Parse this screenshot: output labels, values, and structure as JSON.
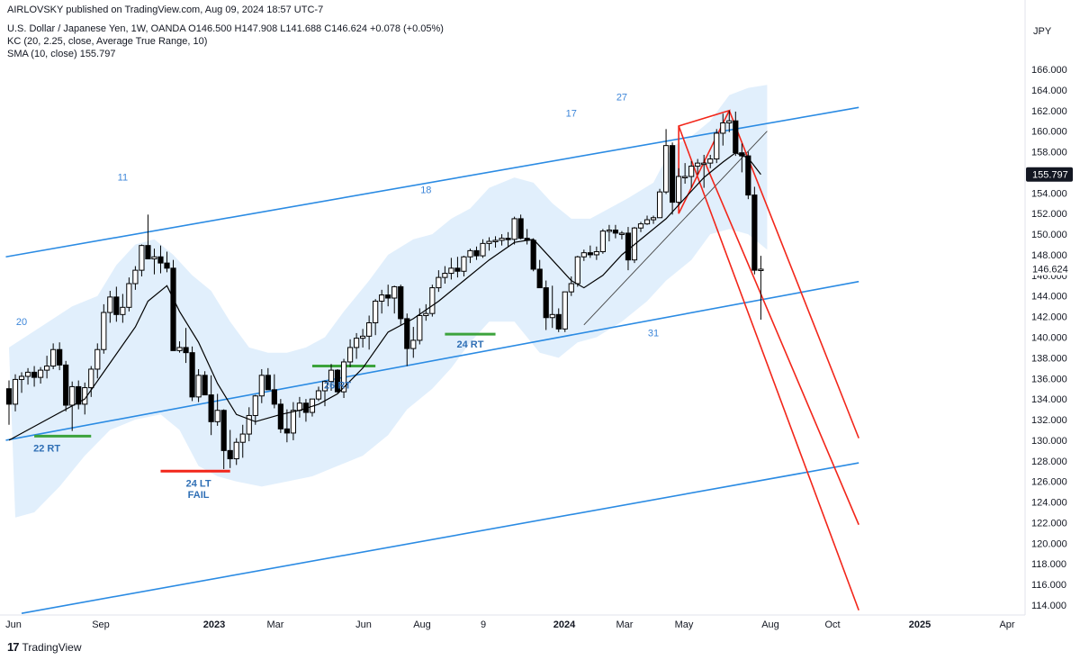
{
  "header": {
    "published": "AIRLOVSKY published on TradingView.com, Aug 09, 2024 18:57 UTC-7",
    "symbol_line": "U.S. Dollar / Japanese Yen, 1W, OANDA  O146.500  H147.908  L141.688  C146.624  +0.078 (+0.05%)",
    "kc_line": "KC (20, 2.25, close, Average True Range, 10)",
    "sma_line": "SMA (10, close)  155.797"
  },
  "footer": {
    "logo": "17",
    "brand": "TradingView"
  },
  "chart_data": {
    "type": "candlestick",
    "currency_label": "JPY",
    "y_axis_ticks": [
      "166.000",
      "164.000",
      "162.000",
      "160.000",
      "158.000",
      "156.000",
      "154.000",
      "152.000",
      "150.000",
      "148.000",
      "146.000",
      "144.000",
      "142.000",
      "140.000",
      "138.000",
      "136.000",
      "134.000",
      "132.000",
      "130.000",
      "128.000",
      "126.000",
      "124.000",
      "122.000",
      "120.000",
      "118.000",
      "116.000",
      "114.000"
    ],
    "ylim": [
      113,
      167
    ],
    "x_axis_labels": [
      {
        "label": "Jun",
        "bold": false
      },
      {
        "label": "Sep",
        "bold": false
      },
      {
        "label": "2023",
        "bold": true
      },
      {
        "label": "Mar",
        "bold": false
      },
      {
        "label": "Jun",
        "bold": false
      },
      {
        "label": "Aug",
        "bold": false
      },
      {
        "label": "9",
        "bold": false
      },
      {
        "label": "2024",
        "bold": true
      },
      {
        "label": "Mar",
        "bold": false
      },
      {
        "label": "May",
        "bold": false
      },
      {
        "label": "Aug",
        "bold": false
      },
      {
        "label": "Oct",
        "bold": false
      },
      {
        "label": "2025",
        "bold": true
      },
      {
        "label": "Apr",
        "bold": false
      }
    ],
    "price_labels": [
      {
        "value": 155.797,
        "text": "155.797",
        "style": "dark"
      },
      {
        "value": 146.624,
        "text": "146.624",
        "style": "plain"
      }
    ],
    "candles": [
      [
        135.0,
        135.8,
        131.5,
        133.5
      ],
      [
        133.5,
        136.4,
        132.8,
        135.9
      ],
      [
        135.9,
        136.6,
        134.6,
        136.2
      ],
      [
        136.2,
        137.0,
        135.4,
        136.6
      ],
      [
        136.6,
        137.2,
        135.2,
        136.1
      ],
      [
        136.1,
        137.1,
        135.5,
        136.8
      ],
      [
        136.8,
        138.2,
        136.0,
        137.2
      ],
      [
        137.2,
        139.4,
        136.9,
        138.8
      ],
      [
        138.8,
        139.5,
        136.8,
        137.3
      ],
      [
        137.3,
        137.7,
        132.8,
        133.4
      ],
      [
        133.4,
        135.7,
        130.9,
        135.2
      ],
      [
        135.2,
        135.8,
        133.0,
        133.5
      ],
      [
        133.5,
        135.6,
        132.5,
        135.1
      ],
      [
        135.1,
        137.2,
        134.2,
        136.9
      ],
      [
        136.9,
        139.4,
        136.0,
        138.8
      ],
      [
        138.8,
        143.2,
        138.4,
        142.4
      ],
      [
        142.4,
        144.5,
        141.4,
        143.9
      ],
      [
        143.9,
        144.9,
        141.5,
        142.2
      ],
      [
        142.2,
        144.2,
        141.4,
        142.9
      ],
      [
        142.9,
        145.8,
        142.5,
        145.2
      ],
      [
        145.2,
        146.9,
        144.6,
        146.5
      ],
      [
        146.5,
        149.0,
        145.9,
        148.9
      ],
      [
        148.9,
        151.9,
        147.7,
        147.6
      ],
      [
        147.6,
        148.6,
        146.1,
        147.8
      ],
      [
        147.8,
        148.9,
        146.2,
        147.2
      ],
      [
        147.2,
        148.3,
        146.3,
        146.7
      ],
      [
        146.7,
        147.5,
        138.7,
        138.7
      ],
      [
        138.7,
        139.6,
        138.5,
        139.0
      ],
      [
        139.0,
        140.9,
        137.5,
        138.5
      ],
      [
        138.5,
        139.1,
        133.8,
        134.2
      ],
      [
        134.2,
        136.9,
        133.7,
        136.3
      ],
      [
        136.3,
        136.7,
        134.8,
        134.4
      ],
      [
        134.4,
        136.3,
        130.5,
        131.8
      ],
      [
        131.8,
        134.5,
        131.4,
        132.9
      ],
      [
        132.9,
        133.0,
        127.2,
        129.0
      ],
      [
        129.0,
        131.0,
        127.3,
        128.2
      ],
      [
        128.2,
        130.2,
        127.6,
        129.8
      ],
      [
        129.8,
        131.5,
        128.3,
        130.6
      ],
      [
        130.6,
        133.2,
        129.9,
        132.4
      ],
      [
        132.4,
        134.4,
        131.5,
        134.3
      ],
      [
        134.3,
        136.9,
        133.6,
        136.3
      ],
      [
        136.3,
        137.0,
        134.9,
        134.9
      ],
      [
        134.9,
        136.4,
        133.1,
        133.5
      ],
      [
        133.5,
        134.0,
        130.7,
        131.1
      ],
      [
        131.1,
        133.0,
        129.8,
        130.7
      ],
      [
        130.7,
        133.7,
        130.0,
        132.9
      ],
      [
        132.9,
        134.2,
        132.2,
        133.6
      ],
      [
        133.6,
        134.0,
        131.8,
        132.7
      ],
      [
        132.7,
        133.9,
        132.3,
        134.0
      ],
      [
        134.0,
        135.2,
        133.8,
        134.8
      ],
      [
        134.8,
        135.8,
        133.3,
        135.7
      ],
      [
        135.7,
        137.4,
        134.8,
        136.8
      ],
      [
        136.8,
        136.9,
        134.6,
        134.7
      ],
      [
        134.7,
        137.9,
        134.1,
        137.6
      ],
      [
        137.6,
        139.8,
        137.1,
        139.0
      ],
      [
        139.0,
        140.4,
        137.9,
        139.9
      ],
      [
        139.9,
        140.8,
        139.0,
        140.1
      ],
      [
        140.1,
        142.1,
        138.8,
        141.4
      ],
      [
        141.4,
        143.7,
        140.2,
        143.5
      ],
      [
        143.5,
        144.6,
        142.3,
        144.1
      ],
      [
        144.1,
        145.1,
        143.0,
        143.8
      ],
      [
        143.8,
        145.0,
        142.3,
        144.9
      ],
      [
        144.9,
        145.1,
        141.2,
        141.8
      ],
      [
        141.8,
        142.3,
        137.2,
        138.9
      ],
      [
        138.9,
        141.0,
        138.0,
        139.7
      ],
      [
        139.7,
        142.8,
        139.3,
        142.1
      ],
      [
        142.1,
        143.2,
        141.6,
        142.3
      ],
      [
        142.3,
        145.1,
        142.0,
        144.8
      ],
      [
        144.8,
        146.5,
        144.4,
        145.8
      ],
      [
        145.8,
        146.9,
        145.2,
        146.2
      ],
      [
        146.2,
        147.7,
        145.6,
        146.7
      ],
      [
        146.7,
        147.8,
        145.8,
        146.4
      ],
      [
        146.4,
        147.9,
        145.9,
        147.8
      ],
      [
        147.8,
        148.6,
        147.2,
        148.4
      ],
      [
        148.4,
        148.8,
        147.5,
        147.9
      ],
      [
        147.9,
        149.5,
        147.7,
        149.1
      ],
      [
        149.1,
        149.7,
        148.4,
        149.3
      ],
      [
        149.3,
        149.8,
        148.7,
        149.4
      ],
      [
        149.4,
        150.0,
        148.9,
        149.6
      ],
      [
        149.6,
        150.2,
        148.8,
        149.5
      ],
      [
        149.5,
        151.7,
        149.0,
        151.5
      ],
      [
        151.5,
        151.9,
        149.5,
        149.6
      ],
      [
        149.6,
        150.5,
        149.0,
        149.4
      ],
      [
        149.4,
        149.6,
        146.4,
        146.6
      ],
      [
        146.6,
        147.5,
        144.8,
        144.8
      ],
      [
        144.8,
        145.5,
        140.7,
        141.9
      ],
      [
        141.9,
        145.0,
        140.9,
        142.2
      ],
      [
        142.2,
        142.8,
        140.5,
        140.8
      ],
      [
        140.8,
        144.4,
        140.5,
        144.4
      ],
      [
        144.4,
        145.9,
        144.0,
        145.2
      ],
      [
        145.2,
        147.9,
        144.9,
        147.8
      ],
      [
        147.8,
        148.5,
        147.4,
        148.2
      ],
      [
        148.2,
        148.9,
        147.7,
        148.0
      ],
      [
        148.0,
        148.8,
        147.5,
        148.3
      ],
      [
        148.3,
        150.5,
        148.1,
        150.3
      ],
      [
        150.3,
        150.9,
        149.3,
        150.4
      ],
      [
        150.4,
        150.9,
        149.6,
        150.1
      ],
      [
        150.1,
        150.3,
        149.5,
        150.1
      ],
      [
        150.1,
        150.7,
        146.5,
        147.5
      ],
      [
        147.5,
        150.7,
        147.2,
        150.6
      ],
      [
        150.6,
        151.2,
        150.2,
        151.0
      ],
      [
        151.0,
        151.8,
        150.9,
        151.4
      ],
      [
        151.4,
        151.8,
        151.0,
        151.6
      ],
      [
        151.6,
        154.4,
        151.6,
        154.1
      ],
      [
        154.1,
        160.2,
        153.9,
        158.6
      ],
      [
        158.6,
        158.9,
        151.9,
        153.1
      ],
      [
        153.1,
        156.4,
        152.8,
        155.6
      ],
      [
        155.6,
        156.9,
        154.9,
        155.6
      ],
      [
        155.6,
        157.1,
        154.5,
        156.6
      ],
      [
        156.6,
        157.3,
        155.8,
        156.9
      ],
      [
        156.9,
        157.7,
        154.5,
        156.9
      ],
      [
        156.9,
        157.7,
        156.4,
        157.3
      ],
      [
        157.3,
        160.2,
        156.9,
        159.8
      ],
      [
        159.8,
        161.7,
        158.6,
        160.8
      ],
      [
        160.8,
        162.0,
        159.9,
        161.0
      ],
      [
        161.0,
        161.9,
        157.6,
        157.9
      ],
      [
        157.9,
        158.8,
        156.0,
        157.6
      ],
      [
        157.6,
        158.0,
        153.4,
        153.8
      ],
      [
        153.8,
        154.6,
        146.1,
        146.5
      ],
      [
        146.5,
        147.9,
        141.7,
        146.6
      ]
    ],
    "sma10": [
      [
        0,
        130.0
      ],
      [
        6,
        132.0
      ],
      [
        12,
        134.0
      ],
      [
        16,
        137.5
      ],
      [
        20,
        141.0
      ],
      [
        22,
        143.5
      ],
      [
        25,
        145.0
      ],
      [
        27,
        142.5
      ],
      [
        30,
        139.5
      ],
      [
        33,
        135.5
      ],
      [
        36,
        132.5
      ],
      [
        39,
        131.8
      ],
      [
        43,
        132.5
      ],
      [
        46,
        132.9
      ],
      [
        49,
        133.5
      ],
      [
        52,
        134.5
      ],
      [
        56,
        137.0
      ],
      [
        60,
        140.5
      ],
      [
        64,
        141.8
      ],
      [
        68,
        143.5
      ],
      [
        72,
        145.5
      ],
      [
        76,
        147.5
      ],
      [
        80,
        149.2
      ],
      [
        83,
        149.5
      ],
      [
        86,
        147.5
      ],
      [
        89,
        145.5
      ],
      [
        91,
        144.8
      ],
      [
        94,
        146.0
      ],
      [
        97,
        148.0
      ],
      [
        101,
        150.0
      ],
      [
        104,
        151.5
      ],
      [
        107,
        153.5
      ],
      [
        110,
        155.5
      ],
      [
        113,
        157.0
      ],
      [
        115,
        157.9
      ],
      [
        117,
        157.4
      ],
      [
        119,
        155.8
      ]
    ],
    "keltner_upper": [
      [
        0,
        139.0
      ],
      [
        5,
        141.0
      ],
      [
        10,
        143.0
      ],
      [
        14,
        144.0
      ],
      [
        17,
        147.0
      ],
      [
        20,
        149.0
      ],
      [
        23,
        149.5
      ],
      [
        26,
        148.0
      ],
      [
        29,
        146.0
      ],
      [
        32,
        144.5
      ],
      [
        35,
        141.5
      ],
      [
        38,
        139.0
      ],
      [
        41,
        138.5
      ],
      [
        44,
        138.5
      ],
      [
        47,
        139.0
      ],
      [
        50,
        140.0
      ],
      [
        53,
        142.5
      ],
      [
        57,
        145.5
      ],
      [
        60,
        148.0
      ],
      [
        64,
        149.5
      ],
      [
        67,
        150.0
      ],
      [
        70,
        151.5
      ],
      [
        73,
        152.5
      ],
      [
        76,
        154.5
      ],
      [
        80,
        155.5
      ],
      [
        83,
        155.0
      ],
      [
        86,
        153.0
      ],
      [
        89,
        151.5
      ],
      [
        92,
        151.5
      ],
      [
        95,
        152.5
      ],
      [
        98,
        153.5
      ],
      [
        102,
        155.0
      ],
      [
        105,
        158.5
      ],
      [
        108,
        159.5
      ],
      [
        111,
        161.0
      ],
      [
        114,
        163.5
      ],
      [
        117,
        164.2
      ],
      [
        120,
        164.5
      ],
      [
        120,
        148.5
      ]
    ],
    "keltner_lower": [
      [
        120,
        148.5
      ],
      [
        117,
        150.0
      ],
      [
        114,
        150.5
      ],
      [
        111,
        150.0
      ],
      [
        108,
        147.5
      ],
      [
        104,
        145.5
      ],
      [
        101,
        143.5
      ],
      [
        97,
        141.5
      ],
      [
        93,
        140.0
      ],
      [
        90,
        139.5
      ],
      [
        87,
        138.0
      ],
      [
        84,
        138.5
      ],
      [
        80,
        141.5
      ],
      [
        76,
        141.5
      ],
      [
        73,
        139.5
      ],
      [
        70,
        137.0
      ],
      [
        67,
        135.0
      ],
      [
        63,
        133.0
      ],
      [
        60,
        130.5
      ],
      [
        56,
        128.5
      ],
      [
        52,
        127.5
      ],
      [
        48,
        126.5
      ],
      [
        44,
        126.0
      ],
      [
        40,
        125.5
      ],
      [
        36,
        126.0
      ],
      [
        33,
        126.5
      ],
      [
        30,
        127.5
      ],
      [
        27,
        131.0
      ],
      [
        24,
        132.5
      ],
      [
        20,
        132.0
      ],
      [
        16,
        131.0
      ],
      [
        12,
        128.5
      ],
      [
        8,
        125.5
      ],
      [
        4,
        123.0
      ],
      [
        1,
        122.5
      ]
    ],
    "blue_lines": [
      {
        "from": [
          -0.5,
          147.8
        ],
        "to": [
          134.5,
          162.3
        ]
      },
      {
        "from": [
          -0.5,
          130.0
        ],
        "to": [
          134.5,
          145.4
        ]
      },
      {
        "from": [
          2,
          113.2
        ],
        "to": [
          134.5,
          127.8
        ]
      }
    ],
    "black_trendline": {
      "from": [
        91,
        141.2
      ],
      "to": [
        120,
        160.0
      ]
    },
    "red_pitchfork": {
      "triangle": [
        [
          106,
          152.0
        ],
        [
          114,
          162.0
        ],
        [
          106,
          160.5
        ]
      ],
      "lines": [
        {
          "from": [
            106,
            160.5
          ],
          "to": [
            134.5,
            113.5
          ]
        },
        {
          "from": [
            110,
            157.2
          ],
          "to": [
            134.5,
            121.8
          ]
        },
        {
          "from": [
            114,
            162.0
          ],
          "to": [
            134.5,
            130.2
          ]
        }
      ]
    },
    "supports": [
      {
        "from": [
          4,
          130.4
        ],
        "to": [
          13,
          130.4
        ],
        "color": "#3ca33c"
      },
      {
        "from": [
          24,
          127.0
        ],
        "to": [
          35,
          127.0
        ],
        "color": "#f2261a"
      },
      {
        "from": [
          48,
          137.2
        ],
        "to": [
          58,
          137.2
        ],
        "color": "#3ca33c"
      },
      {
        "from": [
          69,
          140.3
        ],
        "to": [
          77,
          140.3
        ],
        "color": "#3ca33c"
      }
    ],
    "annotations": [
      {
        "text": "20",
        "x": 2,
        "y": 141.2,
        "style": "light"
      },
      {
        "text": "11",
        "x": 18,
        "y": 155.2,
        "style": "light"
      },
      {
        "text": "18",
        "x": 66,
        "y": 154.0,
        "style": "light"
      },
      {
        "text": "17",
        "x": 89,
        "y": 161.4,
        "style": "light"
      },
      {
        "text": "27",
        "x": 97,
        "y": 163.0,
        "style": "light"
      },
      {
        "text": "31",
        "x": 102,
        "y": 140.1,
        "style": "light"
      },
      {
        "text": "22 RT",
        "x": 6,
        "y": 128.9,
        "style": "dark"
      },
      {
        "text": "24 LT",
        "x": 30,
        "y": 125.5,
        "style": "dark"
      },
      {
        "text": "FAIL",
        "x": 30,
        "y": 124.4,
        "style": "dark"
      },
      {
        "text": "26 RT",
        "x": 52,
        "y": 135.0,
        "style": "dark"
      },
      {
        "text": "24 RT",
        "x": 73,
        "y": 139.0,
        "style": "dark"
      }
    ]
  }
}
